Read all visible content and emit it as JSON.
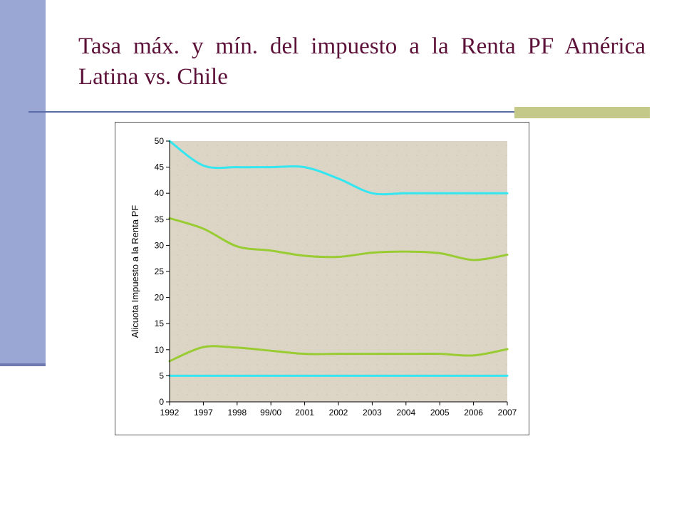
{
  "slide": {
    "title": "Tasa máx. y mín. del impuesto a la Renta PF América Latina vs. Chile",
    "colors": {
      "title": "#5c1138",
      "left_bar": "#9aa6d4",
      "rule": "#5a6aa8",
      "rule_accent": "#c4c98a"
    }
  },
  "chart_data": {
    "type": "line",
    "title": "",
    "xlabel": "",
    "ylabel": "Alicuota Impuesto a la Renta PF",
    "categories": [
      "1992",
      "1997",
      "1998",
      "99/00",
      "2001",
      "2002",
      "2003",
      "2004",
      "2005",
      "2006",
      "2007"
    ],
    "ylim": [
      0,
      50
    ],
    "yticks": [
      0,
      5,
      10,
      15,
      20,
      25,
      30,
      35,
      40,
      45,
      50
    ],
    "grid": false,
    "legend": "none",
    "plot_background": "#dcd5c5",
    "series": [
      {
        "color": "#33e6f0",
        "values": [
          50,
          45.3,
          45,
          45,
          45,
          42.8,
          40,
          40,
          40,
          40,
          40
        ]
      },
      {
        "color": "#99cc33",
        "values": [
          35.2,
          33.2,
          29.8,
          29,
          28,
          27.8,
          28.6,
          28.8,
          28.5,
          27.2,
          28.2
        ]
      },
      {
        "color": "#99cc33",
        "values": [
          7.8,
          10.5,
          10.4,
          9.8,
          9.2,
          9.2,
          9.2,
          9.2,
          9.2,
          8.9,
          10.1
        ]
      },
      {
        "color": "#33e6f0",
        "values": [
          5,
          5,
          5,
          5,
          5,
          5,
          5,
          5,
          5,
          5,
          5
        ]
      }
    ]
  }
}
